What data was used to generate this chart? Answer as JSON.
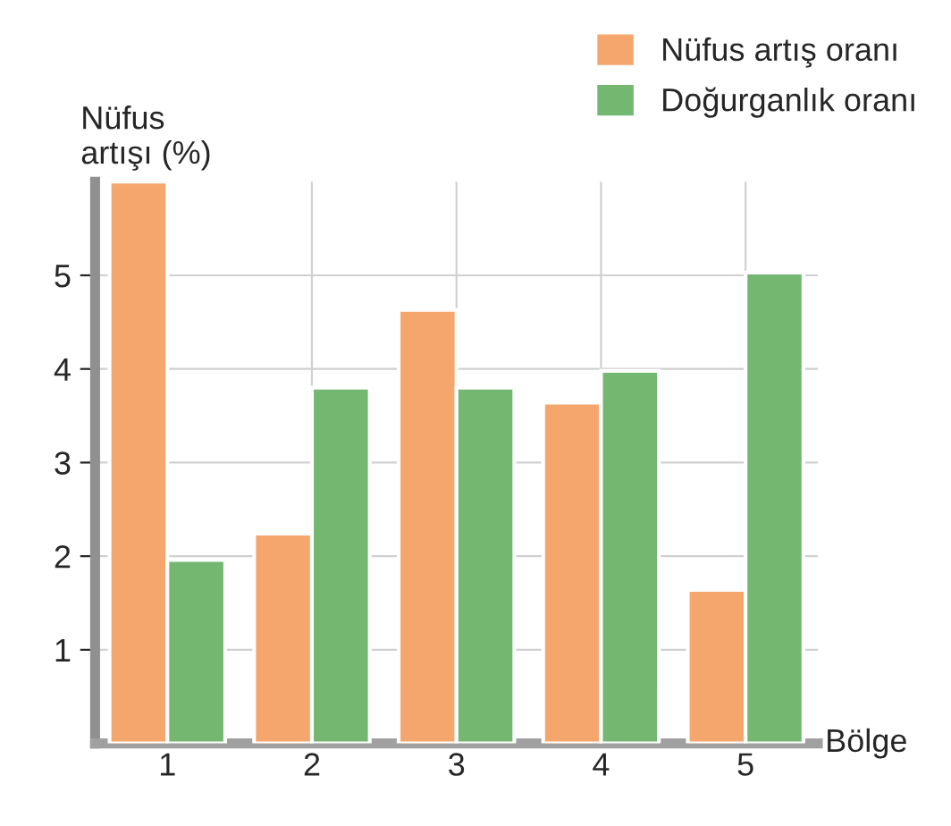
{
  "chart_data": {
    "type": "bar",
    "ylabel": "Nüfus\nartışı (%)",
    "xlabel": "Bölge",
    "categories": [
      "1",
      "2",
      "3",
      "4",
      "5"
    ],
    "series": [
      {
        "name": "Nüfus artış oranı",
        "color": "#f5a66c",
        "values": [
          6.0,
          2.24,
          4.63,
          3.64,
          1.64
        ]
      },
      {
        "name": "Doğurganlık oranı",
        "color": "#74b771",
        "values": [
          1.96,
          3.8,
          3.8,
          3.98,
          5.03
        ]
      }
    ],
    "ylim": [
      0,
      6
    ],
    "yticks": [
      1,
      2,
      3,
      4,
      5
    ],
    "grid": true,
    "legend": "top right"
  }
}
